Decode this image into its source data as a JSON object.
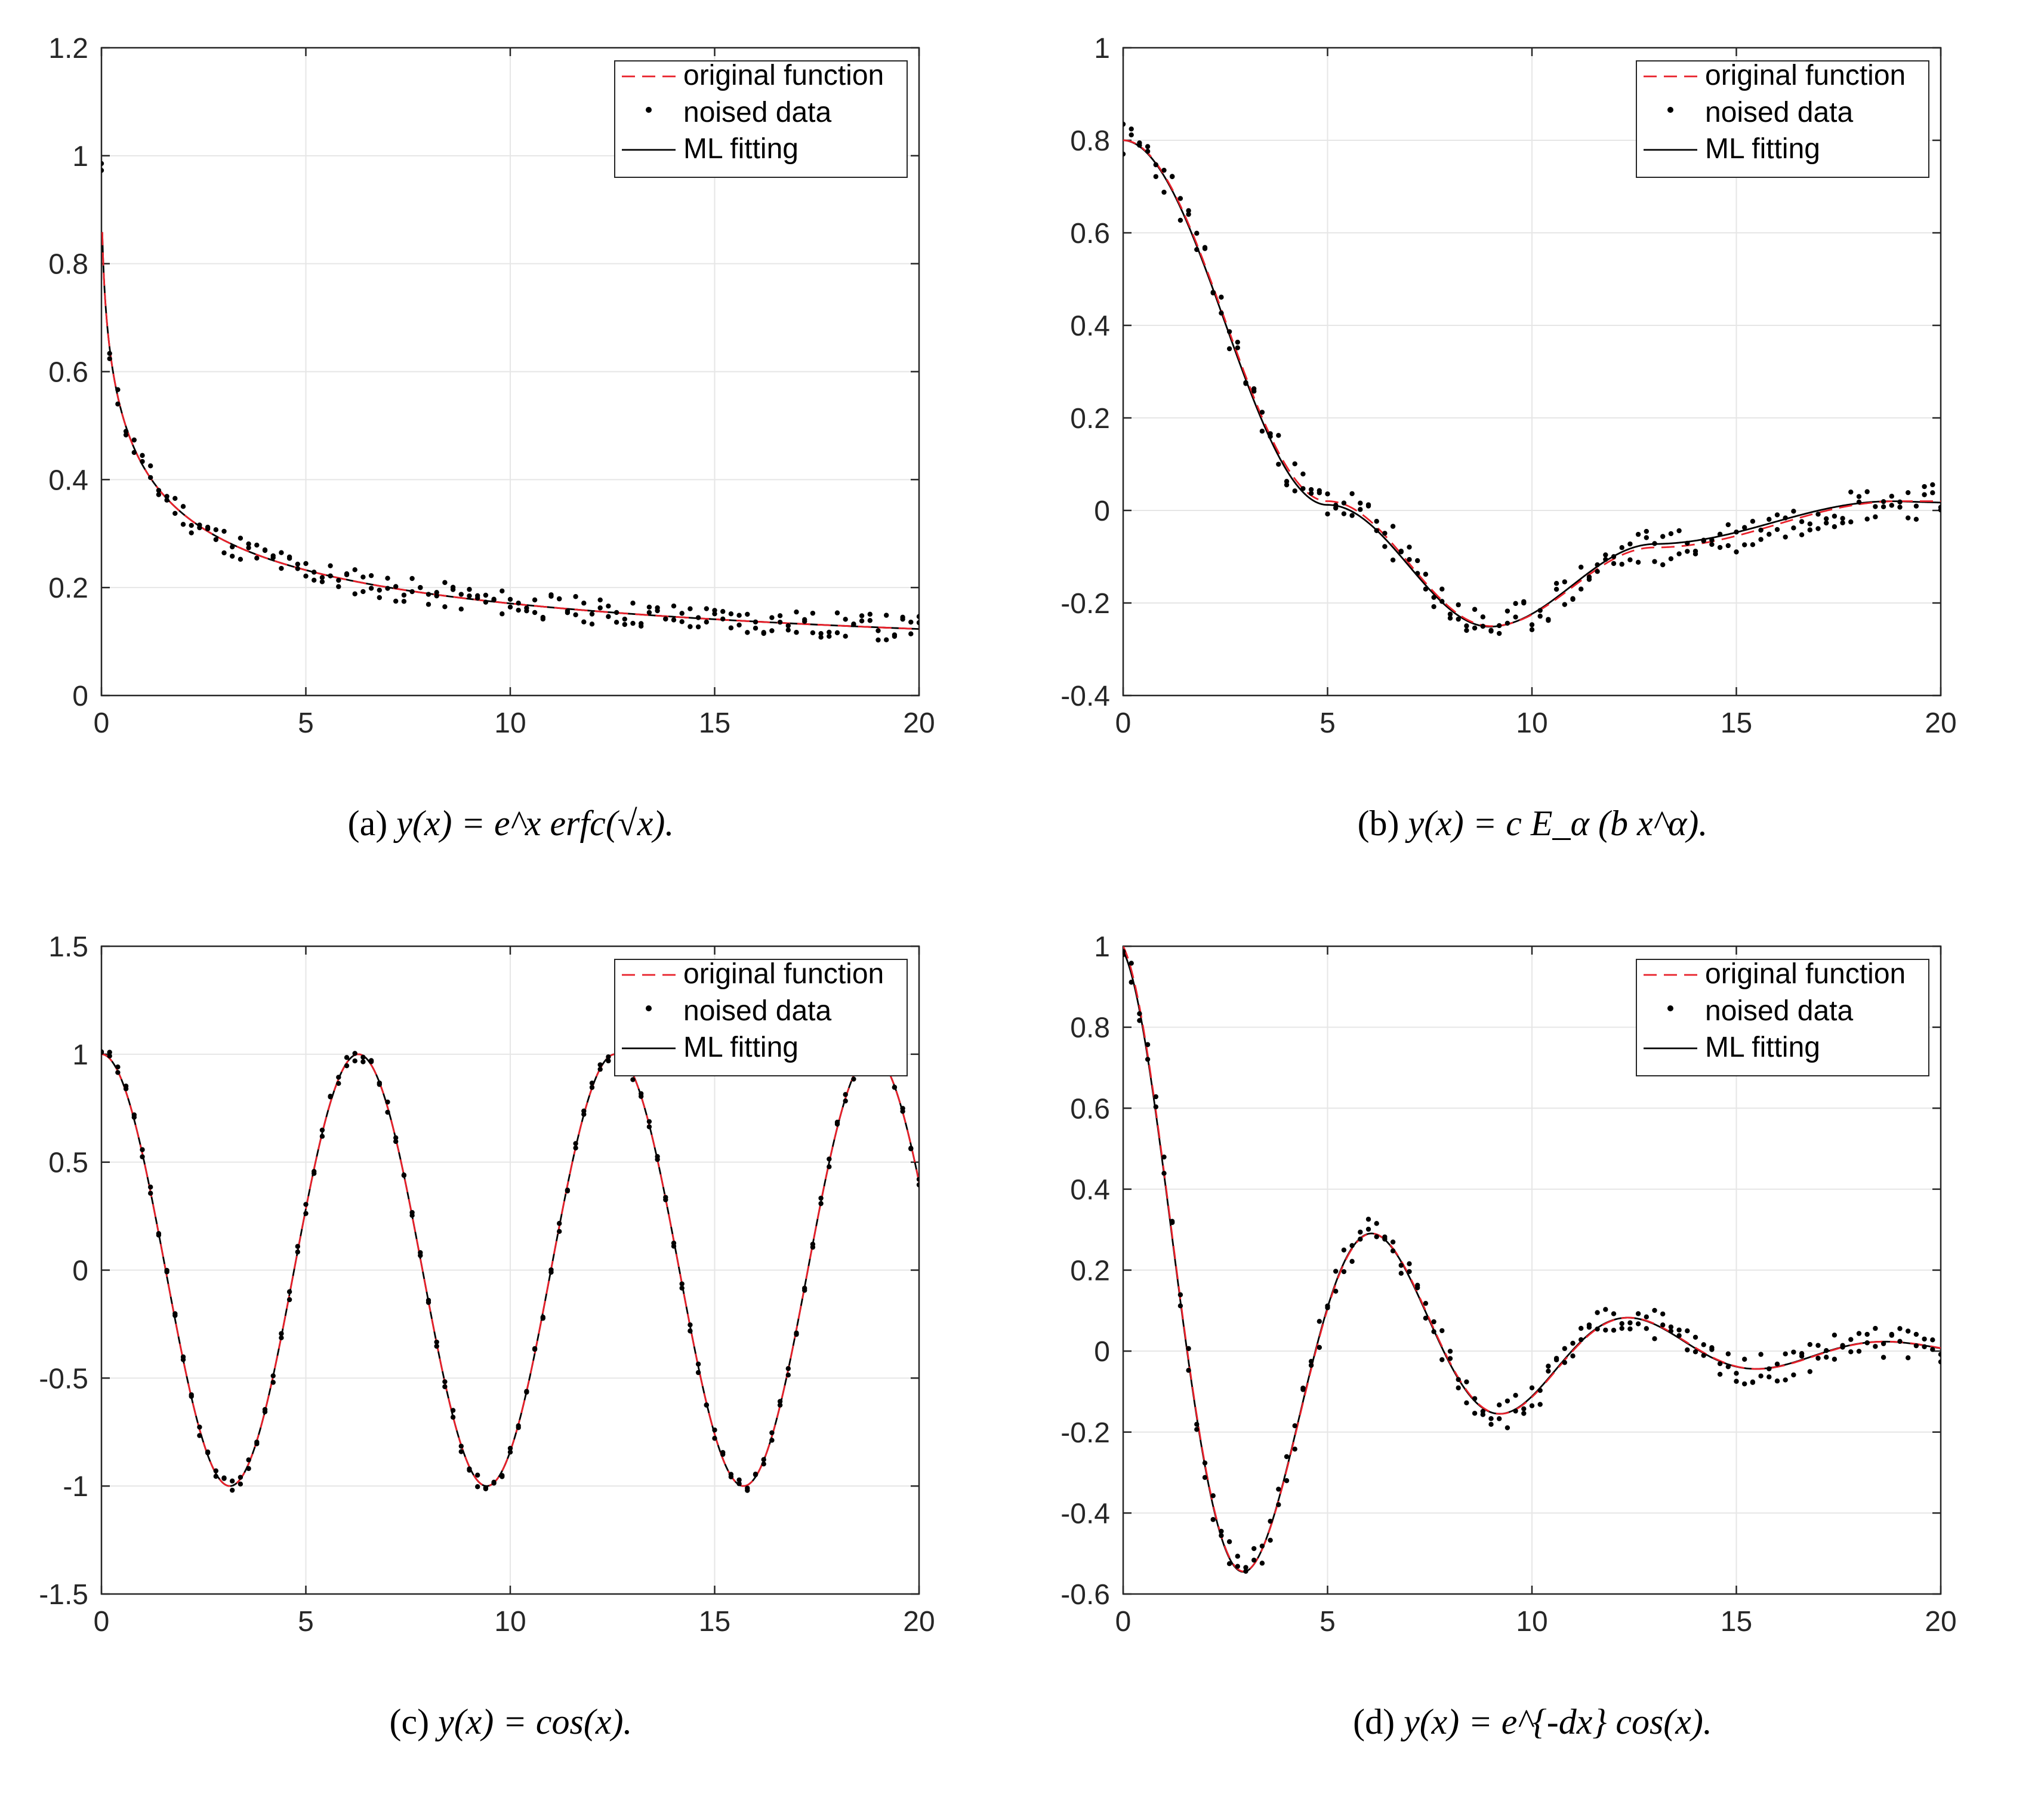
{
  "chart_data": [
    {
      "id": "a",
      "type": "line",
      "caption_label": "(a)",
      "caption_formula": "y(x) = e^x erfc(√x).",
      "xlim": [
        0,
        20
      ],
      "ylim": [
        0,
        1.2
      ],
      "xticks": [
        0,
        5,
        10,
        15,
        20
      ],
      "xtick_labels": [
        "0",
        "5",
        "10",
        "15",
        "20"
      ],
      "yticks": [
        0,
        0.2,
        0.4,
        0.6,
        0.8,
        1,
        1.2
      ],
      "ytick_labels": [
        "0",
        "0.2",
        "0.4",
        "0.6",
        "0.8",
        "1",
        "1.2"
      ],
      "grid": true,
      "legend_location": "top-right",
      "legend": [
        "original function",
        "noised data",
        "ML fitting"
      ],
      "function": "erfcx_sqrt",
      "noise_amplitude": 0.025,
      "noise_seed": 11
    },
    {
      "id": "b",
      "type": "line",
      "caption_label": "(b)",
      "caption_formula": "y(x) = c E_α (b x^α).",
      "xlim": [
        0,
        20
      ],
      "ylim": [
        -0.4,
        1
      ],
      "xticks": [
        0,
        5,
        10,
        15,
        20
      ],
      "xtick_labels": [
        "0",
        "5",
        "10",
        "15",
        "20"
      ],
      "yticks": [
        -0.4,
        -0.2,
        0,
        0.2,
        0.4,
        0.6,
        0.8,
        1
      ],
      "ytick_labels": [
        "-0.4",
        "-0.2",
        "0",
        "0.2",
        "0.4",
        "0.6",
        "0.8",
        "1"
      ],
      "grid": true,
      "legend_location": "top-right",
      "legend": [
        "original function",
        "noised data",
        "ML fitting"
      ],
      "function": "mittag_leffler_shape",
      "key_points": [
        [
          0,
          0.8
        ],
        [
          5,
          0.02
        ],
        [
          9,
          -0.25
        ],
        [
          13,
          -0.08
        ],
        [
          19,
          0.02
        ],
        [
          20,
          0.02
        ]
      ],
      "noise_amplitude": 0.04,
      "noise_seed": 23
    },
    {
      "id": "c",
      "type": "line",
      "caption_label": "(c)",
      "caption_formula": "y(x) = cos(x).",
      "xlim": [
        0,
        20
      ],
      "ylim": [
        -1.5,
        1.5
      ],
      "xticks": [
        0,
        5,
        10,
        15,
        20
      ],
      "xtick_labels": [
        "0",
        "5",
        "10",
        "15",
        "20"
      ],
      "yticks": [
        -1.5,
        -1,
        -0.5,
        0,
        0.5,
        1,
        1.5
      ],
      "ytick_labels": [
        "-1.5",
        "-1",
        "-0.5",
        "0",
        "0.5",
        "1",
        "1.5"
      ],
      "grid": true,
      "legend_location": "top-right",
      "legend": [
        "original function",
        "noised data",
        "ML fitting"
      ],
      "function": "cos",
      "noise_amplitude": 0.03,
      "noise_seed": 37
    },
    {
      "id": "d",
      "type": "line",
      "caption_label": "(d)",
      "caption_formula": "y(x) = e^{-dx} cos(x).",
      "xlim": [
        0,
        20
      ],
      "ylim": [
        -0.6,
        1
      ],
      "xticks": [
        0,
        5,
        10,
        15,
        20
      ],
      "xtick_labels": [
        "0",
        "5",
        "10",
        "15",
        "20"
      ],
      "yticks": [
        -0.6,
        -0.4,
        -0.2,
        0,
        0.2,
        0.4,
        0.6,
        0.8,
        1
      ],
      "ytick_labels": [
        "-0.6",
        "-0.4",
        "-0.2",
        "0",
        "0.2",
        "0.4",
        "0.6",
        "0.8",
        "1"
      ],
      "grid": true,
      "legend_location": "top-right",
      "legend": [
        "original function",
        "noised data",
        "ML fitting"
      ],
      "function": "damped_cos",
      "damping_d": 0.2,
      "noise_amplitude": 0.04,
      "noise_seed": 51
    }
  ],
  "colors": {
    "original": "#e8202a",
    "fit": "#000000",
    "data": "#000000",
    "grid": "#e6e6e6",
    "axis": "#262626"
  }
}
